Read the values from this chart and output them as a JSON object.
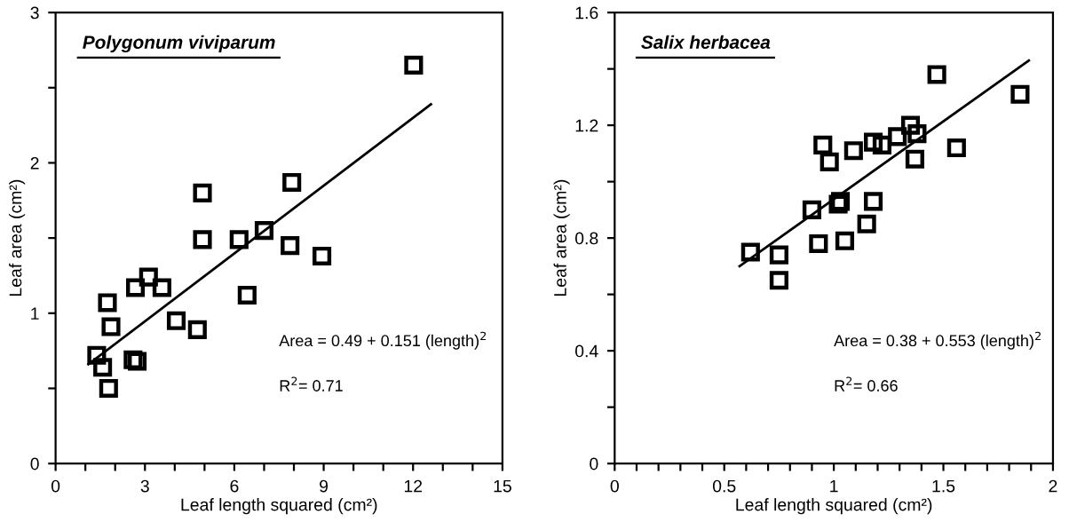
{
  "chart_data": [
    {
      "type": "scatter",
      "title": "Polygonum viviparum",
      "xlabel": "Leaf length squared (cm²)",
      "ylabel": "Leaf area (cm²)",
      "marker": "square",
      "grid": false,
      "legend": false,
      "xlim": [
        0,
        15
      ],
      "ylim": [
        0,
        3
      ],
      "xticks": [
        0,
        {
          "value": 1,
          "label": null
        },
        {
          "value": 2,
          "label": null
        },
        3,
        {
          "value": 4,
          "label": null
        },
        {
          "value": 5,
          "label": null
        },
        6,
        {
          "value": 7,
          "label": null
        },
        {
          "value": 8,
          "label": null
        },
        9,
        {
          "value": 10,
          "label": null
        },
        {
          "value": 11,
          "label": null
        },
        12,
        {
          "value": 13,
          "label": null
        },
        {
          "value": 14,
          "label": null
        },
        15
      ],
      "yticks": [
        0,
        {
          "value": 0.5,
          "label": null
        },
        1,
        {
          "value": 1.5,
          "label": null
        },
        2,
        {
          "value": 2.5,
          "label": null
        },
        3
      ],
      "annotations": [
        "Area = 0.49 + 0.151 (length)$^{2}$",
        "R$^{2}$= 0.71"
      ],
      "series": [
        {
          "color": "#000000",
          "x": [
            1.38,
            1.58,
            1.78,
            1.74,
            1.86,
            2.6,
            2.74,
            2.68,
            3.12,
            3.57,
            4.05,
            4.76,
            4.93,
            4.93,
            6.16,
            6.43,
            7.0,
            7.87,
            7.93,
            8.94,
            12.02
          ],
          "values": [
            0.72,
            0.64,
            0.5,
            1.07,
            0.91,
            0.69,
            0.68,
            1.17,
            1.24,
            1.17,
            0.95,
            0.89,
            1.8,
            1.49,
            1.49,
            1.12,
            1.55,
            1.45,
            1.87,
            1.38,
            2.65
          ]
        },
        {
          "type": "line",
          "color": "#000000",
          "marker": "none",
          "x": [
            1.1,
            12.6
          ],
          "values": [
            0.66,
            2.39
          ]
        }
      ]
    },
    {
      "type": "scatter",
      "title": "Salix herbacea",
      "xlabel": "Leaf length squared (cm²)",
      "ylabel": "Leaf area (cm²)",
      "marker": "square",
      "grid": false,
      "legend": false,
      "xlim": [
        0,
        2
      ],
      "ylim": [
        0,
        1.6
      ],
      "xticks": [
        0,
        {
          "value": 0.1,
          "label": null
        },
        {
          "value": 0.2,
          "label": null
        },
        {
          "value": 0.3,
          "label": null
        },
        {
          "value": 0.4,
          "label": null
        },
        0.5,
        {
          "value": 0.6,
          "label": null
        },
        {
          "value": 0.7,
          "label": null
        },
        {
          "value": 0.8,
          "label": null
        },
        {
          "value": 0.9,
          "label": null
        },
        1,
        {
          "value": 1.1,
          "label": null
        },
        {
          "value": 1.2,
          "label": null
        },
        {
          "value": 1.3,
          "label": null
        },
        {
          "value": 1.4,
          "label": null
        },
        1.5,
        {
          "value": 1.6,
          "label": null
        },
        {
          "value": 1.7,
          "label": null
        },
        {
          "value": 1.8,
          "label": null
        },
        {
          "value": 1.9,
          "label": null
        },
        2
      ],
      "yticks": [
        0,
        {
          "value": 0.2,
          "label": null
        },
        0.4,
        {
          "value": 0.6,
          "label": null
        },
        0.8,
        {
          "value": 1.0,
          "label": null
        },
        1.2,
        {
          "value": 1.4,
          "label": null
        },
        1.6
      ],
      "annotations": [
        "Area = 0.38 + 0.553 (length)$^{2}$",
        "R$^{2}$= 0.66"
      ],
      "series": [
        {
          "color": "#000000",
          "x": [
            0.62,
            0.75,
            0.75,
            0.9,
            0.93,
            0.95,
            0.98,
            1.05,
            1.02,
            1.03,
            1.09,
            1.15,
            1.18,
            1.18,
            1.22,
            1.29,
            1.35,
            1.38,
            1.37,
            1.47,
            1.56,
            1.85
          ],
          "values": [
            0.75,
            0.74,
            0.65,
            0.9,
            0.78,
            1.13,
            1.07,
            0.79,
            0.92,
            0.93,
            1.11,
            0.85,
            1.14,
            0.93,
            1.13,
            1.16,
            1.2,
            1.17,
            1.08,
            1.38,
            1.12,
            1.31
          ]
        },
        {
          "type": "line",
          "color": "#000000",
          "marker": "none",
          "x": [
            0.57,
            1.89
          ],
          "values": [
            0.7,
            1.43
          ]
        }
      ]
    }
  ]
}
